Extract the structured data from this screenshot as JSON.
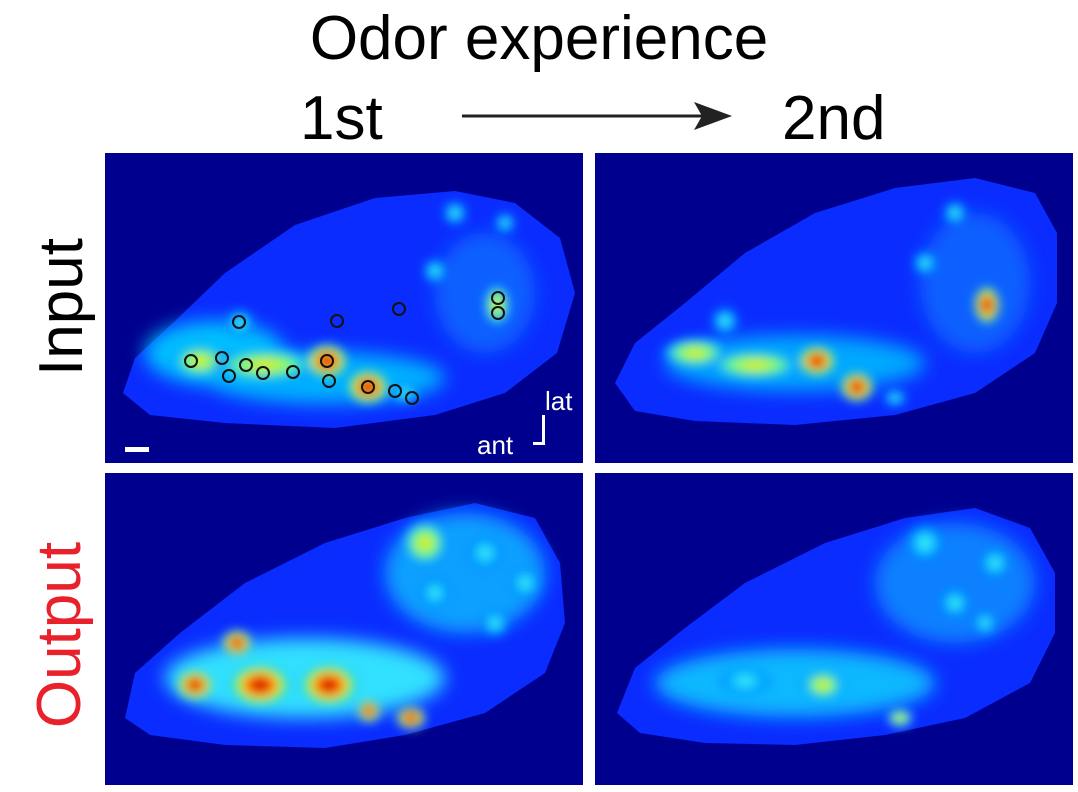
{
  "header": {
    "title": "Odor experience",
    "first_label": "1st",
    "second_label": "2nd"
  },
  "rows": {
    "input_label": "Input",
    "output_label": "Output"
  },
  "orientation": {
    "lat_label": "lat",
    "ant_label": "ant"
  },
  "colors": {
    "background": "#00008f",
    "output_label": "#e8212b",
    "text": "#000000"
  },
  "icons": {
    "arrow": "arrow-right-icon",
    "scale": "scale-bar-icon",
    "orientation": "orientation-axes-icon"
  }
}
